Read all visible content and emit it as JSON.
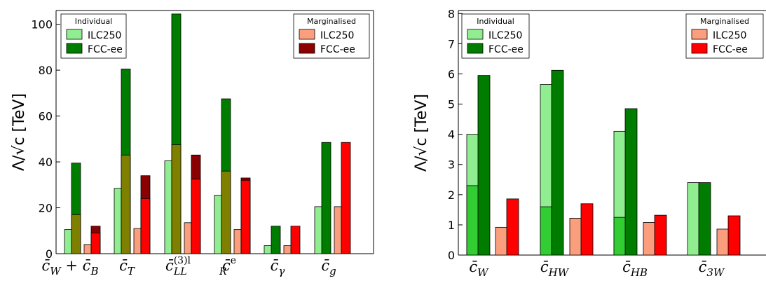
{
  "charts": [
    {
      "ylabel": "Λ/√c [TeV]",
      "legend_individual": {
        "title": "Individual",
        "items": [
          "ILC250",
          "FCC-ee"
        ]
      },
      "legend_marginalised": {
        "title": "Marginalised",
        "items": [
          "ILC250",
          "FCC-ee"
        ]
      }
    },
    {
      "ylabel": "Λ/√c [TeV]",
      "legend_individual": {
        "title": "Individual",
        "items": [
          "ILC250",
          "FCC-ee"
        ]
      },
      "legend_marginalised": {
        "title": "Marginalised",
        "items": [
          "ILC250",
          "FCC-ee"
        ]
      }
    }
  ],
  "chart_data": [
    {
      "type": "bar",
      "ylabel": "Λ/√c [TeV]",
      "ylim": [
        0,
        106
      ],
      "yticks": [
        0,
        20,
        40,
        60,
        80,
        100
      ],
      "categories": [
        "c̄W + c̄B",
        "c̄T",
        "c̄LL(3)l",
        "c̄Re",
        "c̄γ",
        "c̄g"
      ],
      "category_labels": [
        "c̄_W + c̄_B",
        "c̄_T",
        "c̄^(3)l_LL",
        "c̄^e_R",
        "c̄_γ",
        "c̄_g"
      ],
      "legend": "individual: top-left; marginalised: top-right",
      "series": [
        {
          "name": "Individual ILC250",
          "values": [
            10.5,
            28.5,
            40.5,
            25.5,
            3.5,
            20.5
          ],
          "color": "#90ee90"
        },
        {
          "name": "Individual FCC-ee",
          "values": [
            39.5,
            80.5,
            104.5,
            67.5,
            12,
            48.5
          ],
          "color": "#007c00",
          "inner_values": [
            17,
            43,
            47.5,
            36,
            null,
            null
          ],
          "inner_color": "#7f7f00"
        },
        {
          "name": "Marginalised ILC250",
          "values": [
            4,
            11,
            13.5,
            10.5,
            3.5,
            20.5
          ],
          "color": "#fa9e7d"
        },
        {
          "name": "Marginalised FCC-ee",
          "values": [
            12,
            34,
            43,
            33,
            12,
            48.5
          ],
          "color": "#ff0000",
          "outer_values": [
            12,
            34,
            43,
            33,
            null,
            null
          ],
          "inner_values": [
            9,
            24,
            32.5,
            32,
            null,
            null
          ],
          "outer_color": "#8b0000"
        }
      ]
    },
    {
      "type": "bar",
      "ylabel": "Λ/√c [TeV]",
      "ylim": [
        0,
        8.1
      ],
      "yticks": [
        0,
        1,
        2,
        3,
        4,
        5,
        6,
        7,
        8
      ],
      "categories": [
        "c̄W",
        "c̄HW",
        "c̄HB",
        "c̄3W"
      ],
      "category_labels": [
        "c̄_W",
        "c̄_HW",
        "c̄_HB",
        "c̄_3W"
      ],
      "legend": "individual: top-left; marginalised: top-right",
      "series": [
        {
          "name": "Individual ILC250",
          "values": [
            4.0,
            5.65,
            4.1,
            2.4
          ],
          "inner_values": [
            2.3,
            1.6,
            1.25,
            null
          ],
          "color": "#90ee90",
          "inner_color": "#32cd32"
        },
        {
          "name": "Individual FCC-ee",
          "values": [
            5.95,
            6.12,
            4.85,
            2.4
          ],
          "color": "#007c00"
        },
        {
          "name": "Marginalised ILC250",
          "values": [
            0.92,
            1.22,
            1.08,
            0.86
          ],
          "color": "#fa9e7d"
        },
        {
          "name": "Marginalised FCC-ee",
          "values": [
            1.86,
            1.7,
            1.32,
            1.3
          ],
          "color": "#ff0000"
        }
      ]
    }
  ]
}
